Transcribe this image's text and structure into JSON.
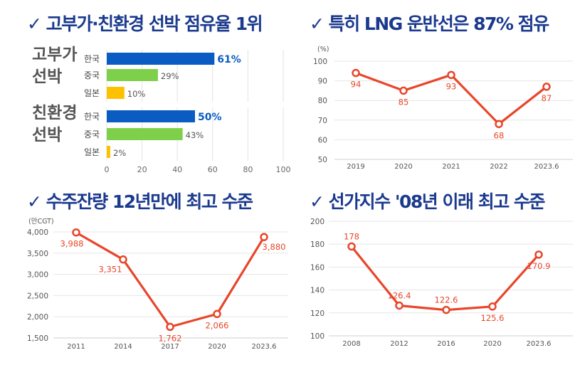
{
  "chart_data": [
    {
      "type": "bar",
      "orientation": "horizontal",
      "title": "✓ 고부가·친환경 선박 점유율 1위",
      "groups": [
        {
          "label": "고부가 선박",
          "categories": [
            "한국",
            "중국",
            "일본"
          ],
          "values": [
            61,
            29,
            10
          ],
          "labels": [
            "61%",
            "29%",
            "10%"
          ]
        },
        {
          "label": "친환경 선박",
          "categories": [
            "한국",
            "중국",
            "일본"
          ],
          "values": [
            50,
            43,
            2
          ],
          "labels": [
            "50%",
            "43%",
            "2%"
          ]
        }
      ],
      "xlim": [
        0,
        100
      ],
      "xticks": [
        "0",
        "20",
        "40",
        "60",
        "80",
        "100"
      ],
      "colors": {
        "한국": "#0a5cc2",
        "중국": "#7ed04a",
        "일본": "#fcc200"
      },
      "grid": true
    },
    {
      "type": "line",
      "title": "✓ 특히 LNG 운반선은 87% 점유",
      "unit": "(%)",
      "categories": [
        "2019",
        "2020",
        "2021",
        "2022",
        "2023.6"
      ],
      "values": [
        94,
        85,
        93,
        68,
        87
      ],
      "labels": [
        "94",
        "85",
        "93",
        "68",
        "87"
      ],
      "ylim": [
        50,
        100
      ],
      "yticks": [
        "50",
        "60",
        "70",
        "80",
        "90",
        "100"
      ],
      "color": "#e8462a",
      "grid": true
    },
    {
      "type": "line",
      "title": "✓ 수주잔량 12년만에 최고 수준",
      "unit": "(만CGT)",
      "categories": [
        "2011",
        "2014",
        "2017",
        "2020",
        "2023.6"
      ],
      "values": [
        3988,
        3351,
        1762,
        2066,
        3880
      ],
      "labels": [
        "3,988",
        "3,351",
        "1,762",
        "2,066",
        "3,880"
      ],
      "ylim": [
        1500,
        4000
      ],
      "yticks": [
        "1,500",
        "2,000",
        "2,500",
        "3,000",
        "3,500",
        "4,000"
      ],
      "color": "#e8462a",
      "grid": true
    },
    {
      "type": "line",
      "title": "✓ 선가지수 '08년 이래 최고 수준",
      "categories": [
        "2008",
        "2012",
        "2016",
        "2020",
        "2023.6"
      ],
      "values": [
        178,
        126.4,
        122.6,
        125.6,
        170.9
      ],
      "labels": [
        "178",
        "126.4",
        "122.6",
        "125.6",
        "170.9"
      ],
      "ylim": [
        100,
        200
      ],
      "yticks": [
        "100",
        "120",
        "140",
        "160",
        "180",
        "200"
      ],
      "color": "#e8462a",
      "grid": true
    }
  ]
}
